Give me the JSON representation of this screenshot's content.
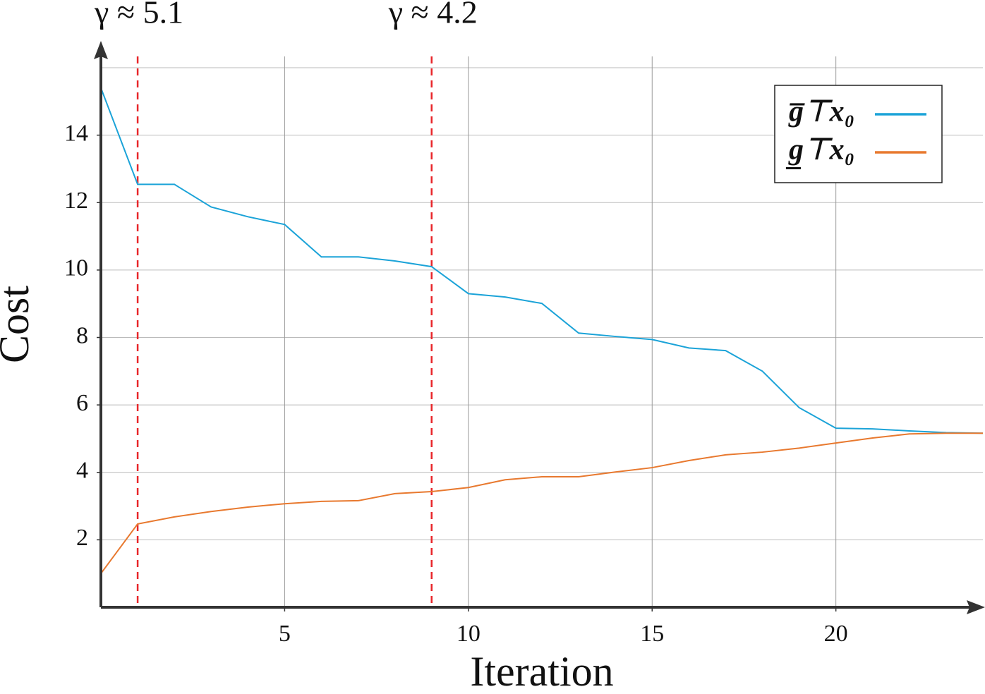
{
  "chart_data": {
    "type": "line",
    "x_label": "Iteration",
    "y_label": "Cost",
    "x": [
      0,
      1,
      2,
      3,
      4,
      5,
      6,
      7,
      8,
      9,
      10,
      11,
      12,
      13,
      14,
      15,
      16,
      17,
      18,
      19,
      20,
      21,
      22,
      23,
      24
    ],
    "series": [
      {
        "name": "g̅⊤x₀",
        "color": "#1ba3d8",
        "values": [
          15.4,
          12.54,
          12.54,
          11.87,
          11.58,
          11.35,
          10.39,
          10.39,
          10.27,
          10.1,
          9.3,
          9.2,
          9.01,
          8.13,
          8.03,
          7.94,
          7.69,
          7.61,
          7.0,
          5.92,
          5.31,
          5.29,
          5.23,
          5.18,
          5.16
        ]
      },
      {
        "name": "g̲⊤x₀",
        "color": "#e8792f",
        "values": [
          1.0,
          2.47,
          2.68,
          2.84,
          2.97,
          3.07,
          3.14,
          3.16,
          3.37,
          3.43,
          3.55,
          3.78,
          3.87,
          3.87,
          4.01,
          4.14,
          4.35,
          4.52,
          4.6,
          4.72,
          4.87,
          5.02,
          5.14,
          5.16,
          5.16
        ]
      }
    ],
    "annotations": [
      {
        "text": "γ ≈ 5.1",
        "x": 1,
        "color": "#e8262a"
      },
      {
        "text": "γ ≈ 4.2",
        "x": 9,
        "color": "#e8262a"
      }
    ],
    "xlim": [
      0,
      24
    ],
    "xticks": [
      5,
      10,
      15,
      20
    ],
    "ylim": [
      0,
      16
    ],
    "yticks": [
      2,
      4,
      6,
      8,
      10,
      12,
      14
    ],
    "grid": true,
    "legend": "upper right"
  }
}
